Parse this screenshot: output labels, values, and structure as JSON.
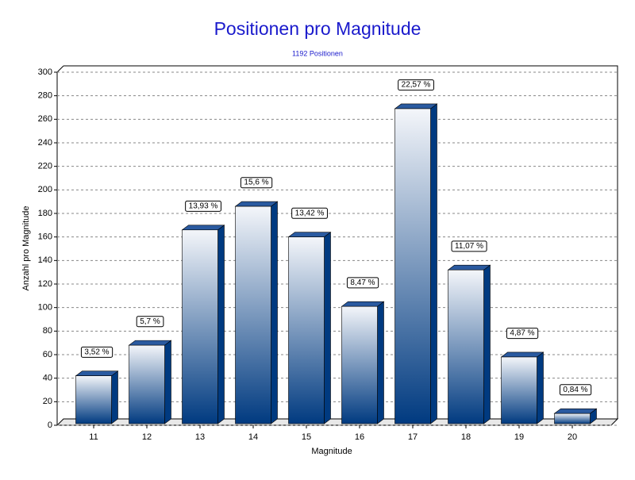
{
  "chart_data": {
    "type": "bar3d",
    "title": "Positionen pro Magnitude",
    "subtitle": "1192 Positionen",
    "x_label": "Magnitude",
    "y_label": "Anzahl pro Magnitude",
    "categories": [
      "11",
      "12",
      "13",
      "14",
      "15",
      "16",
      "17",
      "18",
      "19",
      "20"
    ],
    "values": [
      42,
      68,
      166,
      186,
      160,
      101,
      269,
      132,
      58,
      10
    ],
    "percent_labels": [
      "3,52 %",
      "5,7 %",
      "13,93 %",
      "15,6 %",
      "13,42 %",
      "8,47 %",
      "22,57 %",
      "11,07 %",
      "4,87 %",
      "0,84 %"
    ],
    "color": "#003a80",
    "ylim": [
      0,
      300
    ],
    "yticks": [
      0,
      20,
      40,
      60,
      80,
      100,
      120,
      140,
      160,
      180,
      200,
      220,
      240,
      260,
      280,
      300
    ],
    "grid": true
  }
}
